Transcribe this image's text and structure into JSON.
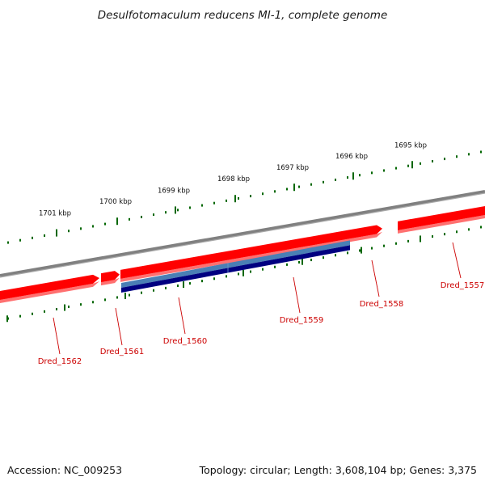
{
  "title": "Desulfotomaculum reducens MI-1, complete genome",
  "footer": {
    "accession": "Accession: NC_009253",
    "summary": "Topology: circular; Length: 3,608,104 bp; Genes: 3,375"
  },
  "colors": {
    "backbone": "#808080",
    "gene_forward": "#ff0000",
    "gene_forward_shadow": "#ff7070",
    "blast_light": "#4a7fb5",
    "blast_dark": "#000080",
    "ticks": "#006600",
    "label": "#cc0000"
  },
  "ticks": [
    {
      "label": "1701 kbp"
    },
    {
      "label": "1700 kbp"
    },
    {
      "label": "1699 kbp"
    },
    {
      "label": "1698 kbp"
    },
    {
      "label": "1697 kbp"
    },
    {
      "label": "1696 kbp"
    },
    {
      "label": "1695 kbp"
    }
  ],
  "genes": [
    {
      "name": "Dred_1562"
    },
    {
      "name": "Dred_1561"
    },
    {
      "name": "Dred_1560"
    },
    {
      "name": "Dred_1559"
    },
    {
      "name": "Dred_1558"
    },
    {
      "name": "Dred_1557"
    }
  ]
}
